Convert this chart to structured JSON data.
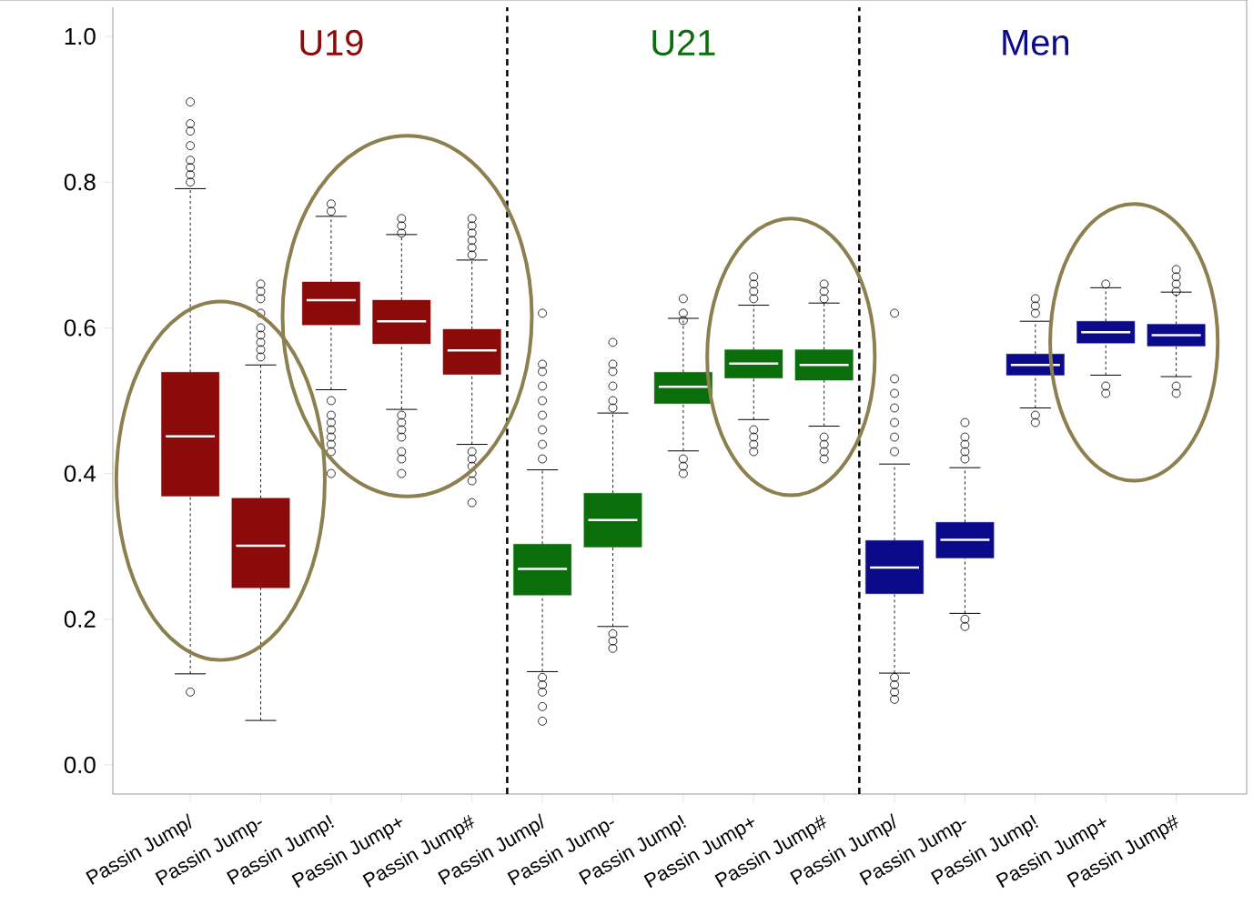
{
  "chart_data": {
    "type": "box",
    "categories": [
      "Passin Jump/",
      "Passin Jump-",
      "Passin Jump!",
      "Passin Jump+",
      "Passin Jump#",
      "Passin Jump/",
      "Passin Jump-",
      "Passin Jump!",
      "Passin Jump+",
      "Passin Jump#",
      "Passin Jump/",
      "Passin Jump-",
      "Passin Jump!",
      "Passin Jump+",
      "Passin Jump#"
    ],
    "ylim": [
      -0.04,
      1.04
    ],
    "yticks": [
      {
        "value": 0,
        "label": "0.0"
      },
      {
        "value": 0.2,
        "label": "0.2"
      },
      {
        "value": 0.4,
        "label": "0.4"
      },
      {
        "value": 0.6,
        "label": "0.6"
      },
      {
        "value": 0.8,
        "label": "0.8"
      },
      {
        "value": 1,
        "label": "1.0"
      }
    ],
    "series": [
      {
        "name": "U19",
        "color": "#8b0a0a",
        "boxes": [
          {
            "low": 0.125,
            "q1": 0.369,
            "median": 0.451,
            "q3": 0.539,
            "high": 0.791,
            "outliers": [
              0.91,
              0.88,
              0.87,
              0.85,
              0.83,
              0.82,
              0.81,
              0.8,
              0.1
            ]
          },
          {
            "low": 0.061,
            "q1": 0.243,
            "median": 0.301,
            "q3": 0.366,
            "high": 0.549,
            "outliers": [
              0.66,
              0.65,
              0.64,
              0.62,
              0.6,
              0.59,
              0.58,
              0.57,
              0.56
            ]
          },
          {
            "low": 0.515,
            "q1": 0.604,
            "median": 0.638,
            "q3": 0.663,
            "high": 0.753,
            "outliers": [
              0.77,
              0.76,
              0.5,
              0.48,
              0.47,
              0.46,
              0.45,
              0.44,
              0.43,
              0.4
            ]
          },
          {
            "low": 0.488,
            "q1": 0.578,
            "median": 0.609,
            "q3": 0.638,
            "high": 0.728,
            "outliers": [
              0.75,
              0.74,
              0.73,
              0.48,
              0.47,
              0.46,
              0.45,
              0.43,
              0.42,
              0.4
            ]
          },
          {
            "low": 0.44,
            "q1": 0.536,
            "median": 0.569,
            "q3": 0.598,
            "high": 0.693,
            "outliers": [
              0.75,
              0.74,
              0.73,
              0.72,
              0.71,
              0.7,
              0.43,
              0.42,
              0.41,
              0.4,
              0.39,
              0.36
            ]
          },
          null,
          null,
          null,
          null,
          null,
          null,
          null,
          null,
          null,
          null
        ]
      },
      {
        "name": "U21",
        "color": "#0a6e0a",
        "boxes": [
          null,
          null,
          null,
          null,
          null,
          {
            "low": 0.128,
            "q1": 0.233,
            "median": 0.269,
            "q3": 0.303,
            "high": 0.405,
            "outliers": [
              0.62,
              0.55,
              0.54,
              0.52,
              0.5,
              0.48,
              0.46,
              0.44,
              0.42,
              0.12,
              0.11,
              0.1,
              0.08,
              0.06
            ]
          },
          {
            "low": 0.19,
            "q1": 0.299,
            "median": 0.336,
            "q3": 0.373,
            "high": 0.483,
            "outliers": [
              0.58,
              0.55,
              0.54,
              0.52,
              0.5,
              0.49,
              0.18,
              0.17,
              0.16
            ]
          },
          {
            "low": 0.431,
            "q1": 0.496,
            "median": 0.519,
            "q3": 0.539,
            "high": 0.613,
            "outliers": [
              0.64,
              0.62,
              0.61,
              0.42,
              0.41,
              0.4
            ]
          },
          {
            "low": 0.474,
            "q1": 0.531,
            "median": 0.551,
            "q3": 0.57,
            "high": 0.631,
            "outliers": [
              0.67,
              0.66,
              0.65,
              0.64,
              0.46,
              0.45,
              0.44,
              0.43
            ]
          },
          {
            "low": 0.465,
            "q1": 0.528,
            "median": 0.549,
            "q3": 0.57,
            "high": 0.634,
            "outliers": [
              0.66,
              0.65,
              0.64,
              0.45,
              0.44,
              0.43,
              0.42
            ]
          },
          null,
          null,
          null,
          null,
          null
        ]
      },
      {
        "name": "Men",
        "color": "#0a0a8b",
        "boxes": [
          null,
          null,
          null,
          null,
          null,
          null,
          null,
          null,
          null,
          null,
          {
            "low": 0.126,
            "q1": 0.235,
            "median": 0.271,
            "q3": 0.308,
            "high": 0.413,
            "outliers": [
              0.62,
              0.53,
              0.51,
              0.49,
              0.47,
              0.45,
              0.43,
              0.12,
              0.11,
              0.1,
              0.09
            ]
          },
          {
            "low": 0.208,
            "q1": 0.284,
            "median": 0.309,
            "q3": 0.333,
            "high": 0.408,
            "outliers": [
              0.47,
              0.45,
              0.44,
              0.43,
              0.42,
              0.2,
              0.19
            ]
          },
          {
            "low": 0.49,
            "q1": 0.535,
            "median": 0.549,
            "q3": 0.564,
            "high": 0.609,
            "outliers": [
              0.64,
              0.63,
              0.62,
              0.48,
              0.47
            ]
          },
          {
            "low": 0.535,
            "q1": 0.579,
            "median": 0.594,
            "q3": 0.609,
            "high": 0.655,
            "outliers": [
              0.66,
              0.52,
              0.51
            ]
          },
          {
            "low": 0.533,
            "q1": 0.575,
            "median": 0.59,
            "q3": 0.605,
            "high": 0.649,
            "outliers": [
              0.68,
              0.67,
              0.66,
              0.65,
              0.52,
              0.51
            ]
          }
        ]
      }
    ]
  }
}
